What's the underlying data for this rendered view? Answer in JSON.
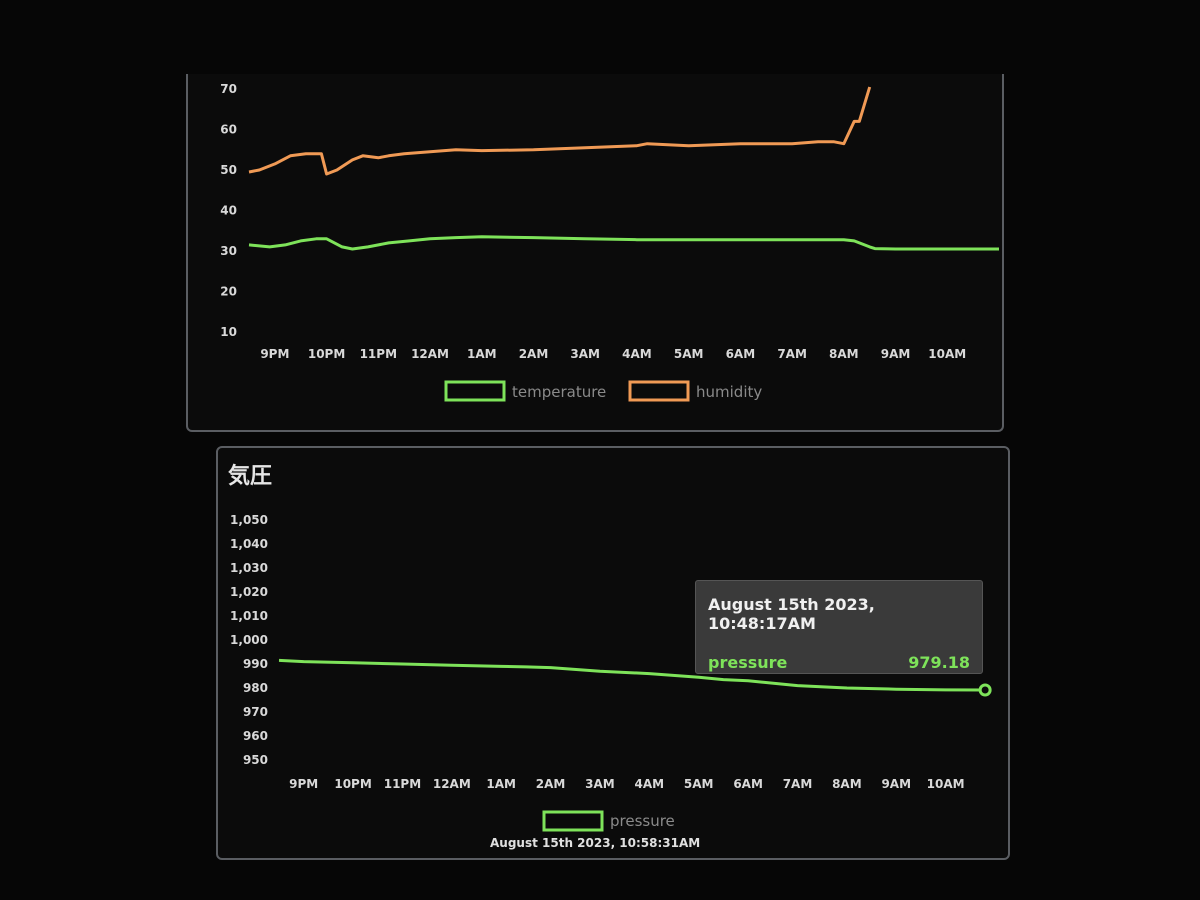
{
  "colors": {
    "temperature": "#7ee35a",
    "humidity": "#f09a55",
    "pressure": "#7ee35a"
  },
  "x_labels": [
    "9PM",
    "10PM",
    "11PM",
    "12AM",
    "1AM",
    "2AM",
    "3AM",
    "4AM",
    "5AM",
    "6AM",
    "7AM",
    "8AM",
    "9AM",
    "10AM"
  ],
  "pressure_panel": {
    "title": "気圧"
  },
  "tooltip": {
    "title": "August 15th 2023, 10:48:17AM",
    "label": "pressure",
    "value": "979.18"
  },
  "updated_text": "August 15th 2023, 10:58:31AM",
  "chart_data": [
    {
      "type": "line",
      "title": "",
      "x_unit": "hour of day",
      "x_start": 20.5,
      "x_end": 11.0,
      "ylim": [
        10,
        70
      ],
      "yticks": [
        10,
        20,
        30,
        40,
        50,
        60,
        70
      ],
      "legend": "bottom",
      "series": [
        {
          "name": "temperature",
          "x": [
            20.5,
            20.9,
            21.2,
            21.5,
            21.8,
            22.0,
            22.3,
            22.5,
            22.8,
            23.2,
            23.6,
            0.0,
            0.5,
            1.0,
            2.0,
            3.0,
            4.0,
            5.0,
            6.0,
            7.0,
            7.5,
            8.0,
            8.2,
            8.5,
            8.6,
            9.0,
            10.0,
            11.0
          ],
          "y": [
            31.5,
            31.0,
            31.5,
            32.5,
            33.0,
            33.0,
            31.0,
            30.5,
            31.0,
            32.0,
            32.5,
            33.0,
            33.3,
            33.5,
            33.3,
            33.0,
            32.8,
            32.8,
            32.8,
            32.8,
            32.8,
            32.8,
            32.5,
            31.0,
            30.6,
            30.5,
            30.5,
            30.5
          ]
        },
        {
          "name": "humidity",
          "x": [
            20.5,
            20.7,
            21.0,
            21.3,
            21.6,
            21.9,
            22.0,
            22.2,
            22.5,
            22.7,
            23.0,
            23.2,
            23.5,
            0.0,
            0.5,
            1.0,
            2.0,
            3.0,
            4.0,
            4.2,
            5.0,
            6.0,
            7.0,
            7.5,
            7.8,
            8.0,
            8.2,
            8.3,
            8.5
          ],
          "y": [
            49.5,
            50.0,
            51.5,
            53.5,
            54.0,
            54.0,
            49.0,
            50.0,
            52.5,
            53.5,
            53.0,
            53.5,
            54.0,
            54.5,
            55.0,
            54.8,
            55.0,
            55.5,
            56.0,
            56.5,
            56.0,
            56.5,
            56.5,
            57.0,
            57.0,
            56.5,
            62.0,
            62.0,
            70.5
          ]
        }
      ]
    },
    {
      "type": "line",
      "title": "気圧",
      "x_unit": "hour of day",
      "x_start": 20.5,
      "x_end": 11.0,
      "ylim": [
        950,
        1050
      ],
      "yticks": [
        950,
        960,
        970,
        980,
        990,
        1000,
        1010,
        1020,
        1030,
        1040,
        1050
      ],
      "legend": "bottom",
      "series": [
        {
          "name": "pressure",
          "x": [
            20.5,
            21.0,
            22.0,
            23.0,
            0.0,
            1.0,
            1.5,
            2.0,
            3.0,
            4.0,
            5.0,
            5.5,
            6.0,
            7.0,
            8.0,
            9.0,
            10.0,
            10.8
          ],
          "y": [
            991.5,
            991.0,
            990.5,
            990.0,
            989.5,
            989.0,
            988.8,
            988.5,
            987.0,
            986.0,
            984.5,
            983.5,
            983.0,
            981.0,
            980.0,
            979.5,
            979.2,
            979.18
          ]
        }
      ]
    }
  ]
}
